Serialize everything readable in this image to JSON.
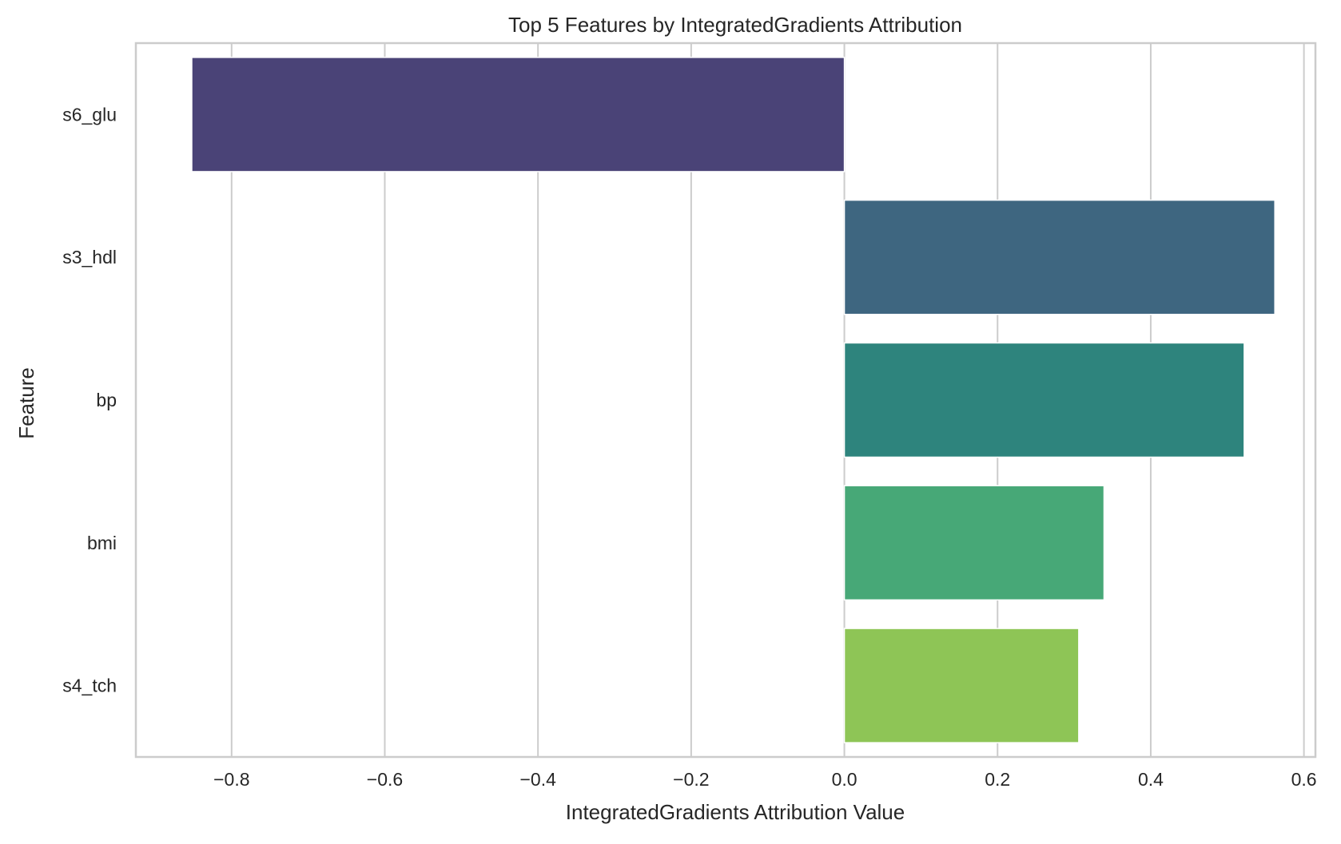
{
  "chart_data": {
    "type": "bar",
    "orientation": "horizontal",
    "title": "Top 5 Features by IntegratedGradients Attribution",
    "xlabel": "IntegratedGradients Attribution Value",
    "ylabel": "Feature",
    "categories": [
      "s6_glu",
      "s3_hdl",
      "bp",
      "bmi",
      "s4_tch"
    ],
    "values": [
      -0.852,
      0.562,
      0.522,
      0.339,
      0.306
    ],
    "colors": [
      "#4a4377",
      "#3e6680",
      "#2e847d",
      "#47a877",
      "#8ec556"
    ],
    "xlim": [
      -0.925,
      0.615
    ],
    "xticks": [
      -0.8,
      -0.6,
      -0.4,
      -0.2,
      0.0,
      0.2,
      0.4,
      0.6
    ],
    "xtick_labels": [
      "−0.8",
      "−0.6",
      "−0.4",
      "−0.2",
      "0.0",
      "0.2",
      "0.4",
      "0.6"
    ],
    "grid": "vertical",
    "legend": "none"
  }
}
